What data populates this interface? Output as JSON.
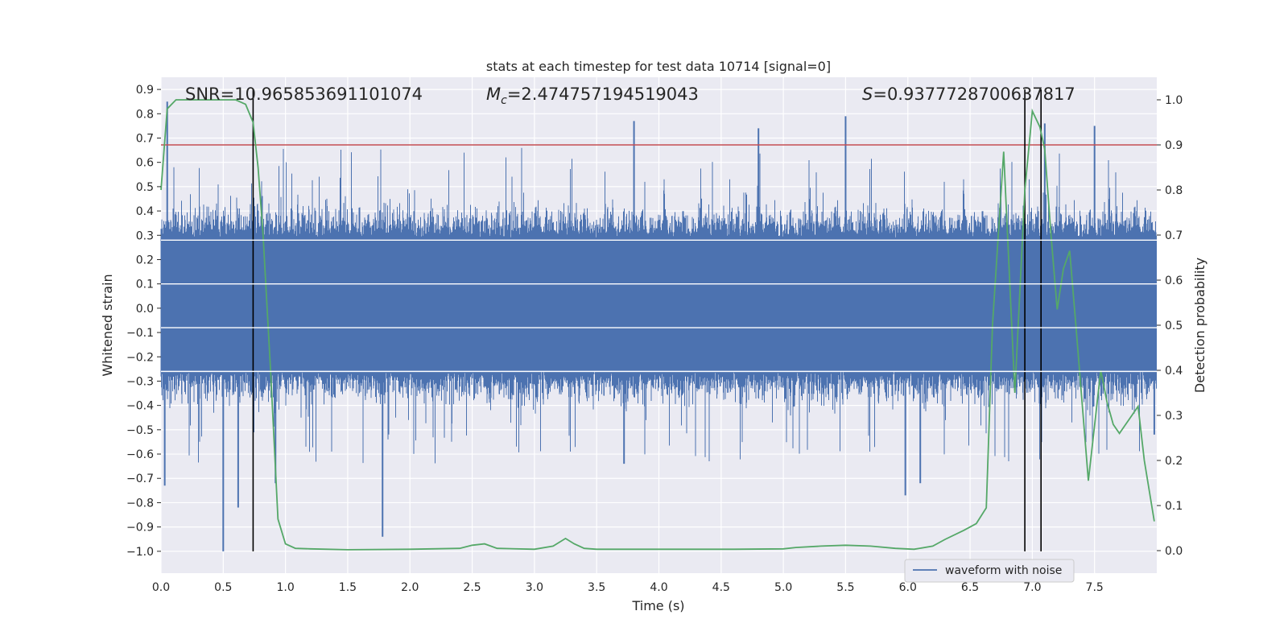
{
  "chart_data": {
    "type": "line",
    "title": "stats at each timestep for test data 10714 [signal=0]",
    "xlabel": "Time (s)",
    "ylabel": "Whitened strain",
    "y2label": "Detection probability",
    "xlim": [
      0.0,
      8.0
    ],
    "ylim": [
      -1.09,
      0.95
    ],
    "y2lim": [
      -0.05,
      1.05
    ],
    "xticks": [
      0.0,
      0.5,
      1.0,
      1.5,
      2.0,
      2.5,
      3.0,
      3.5,
      4.0,
      4.5,
      5.0,
      5.5,
      6.0,
      6.5,
      7.0,
      7.5
    ],
    "xtick_labels": [
      "0.0",
      "0.5",
      "1.0",
      "1.5",
      "2.0",
      "2.5",
      "3.0",
      "3.5",
      "4.0",
      "4.5",
      "5.0",
      "5.5",
      "6.0",
      "6.5",
      "7.0",
      "7.5"
    ],
    "yticks": [
      0.9,
      0.8,
      0.7,
      0.6,
      0.5,
      0.4,
      0.3,
      0.2,
      0.1,
      0.0,
      -0.1,
      -0.2,
      -0.3,
      -0.4,
      -0.5,
      -0.6,
      -0.7,
      -0.8,
      -0.9,
      -1.0
    ],
    "ytick_labels": [
      "0.9",
      "0.8",
      "0.7",
      "0.6",
      "0.5",
      "0.4",
      "0.3",
      "0.2",
      "0.1",
      "0.0",
      "−0.1",
      "−0.2",
      "−0.3",
      "−0.4",
      "−0.5",
      "−0.6",
      "−0.7",
      "−0.8",
      "−0.9",
      "−1.0"
    ],
    "y2ticks": [
      1.0,
      0.9,
      0.8,
      0.7,
      0.6,
      0.5,
      0.4,
      0.3,
      0.2,
      0.1,
      0.0
    ],
    "y2tick_labels": [
      "1.0",
      "0.9",
      "0.8",
      "0.7",
      "0.6",
      "0.5",
      "0.4",
      "0.3",
      "0.2",
      "0.1",
      "0.0"
    ],
    "annotations": {
      "snr": "SNR=10.965853691101074",
      "mc_symbol": "M",
      "mc_sub": "c",
      "mc_value": "=2.474757194519043",
      "s_symbol": "S",
      "s_value": "=0.9377728700637817"
    },
    "threshold_y2": 0.9,
    "vertical_lines_x": [
      0.74,
      6.94,
      7.07
    ],
    "series": [
      {
        "name": "waveform with noise",
        "color": "#4c72b0",
        "axis": "left",
        "description": "dense whitened strain noise, core band about -0.26 to 0.29, spikes to ~0.85 and ~-1.0",
        "spikes": [
          [
            0.05,
            0.85
          ],
          [
            0.03,
            -0.73
          ],
          [
            0.5,
            -1.0
          ],
          [
            0.62,
            -0.82
          ],
          [
            0.92,
            -0.72
          ],
          [
            1.78,
            -0.94
          ],
          [
            3.8,
            0.77
          ],
          [
            3.72,
            -0.64
          ],
          [
            4.8,
            0.74
          ],
          [
            5.5,
            0.79
          ],
          [
            5.98,
            -0.77
          ],
          [
            6.1,
            -0.72
          ],
          [
            7.1,
            0.76
          ],
          [
            7.5,
            0.75
          ],
          [
            7.98,
            -0.52
          ]
        ]
      },
      {
        "name": "detection probability",
        "color": "#55a868",
        "axis": "right",
        "x": [
          0.0,
          0.05,
          0.12,
          0.2,
          0.3,
          0.4,
          0.5,
          0.6,
          0.68,
          0.74,
          0.78,
          0.82,
          0.88,
          0.94,
          1.0,
          1.08,
          1.2,
          1.5,
          2.0,
          2.4,
          2.5,
          2.6,
          2.7,
          3.0,
          3.15,
          3.25,
          3.32,
          3.4,
          3.5,
          3.8,
          4.2,
          4.6,
          5.0,
          5.1,
          5.3,
          5.5,
          5.7,
          5.9,
          6.05,
          6.2,
          6.3,
          6.45,
          6.55,
          6.63,
          6.68,
          6.77,
          6.86,
          6.94,
          7.0,
          7.06,
          7.1,
          7.15,
          7.2,
          7.25,
          7.3,
          7.35,
          7.45,
          7.55,
          7.6,
          7.65,
          7.7,
          7.75,
          7.8,
          7.85,
          7.9,
          7.98
        ],
        "y": [
          0.8,
          0.98,
          1.0,
          1.0,
          1.0,
          1.0,
          1.0,
          1.0,
          0.99,
          0.95,
          0.85,
          0.7,
          0.4,
          0.07,
          0.015,
          0.005,
          0.004,
          0.002,
          0.003,
          0.005,
          0.012,
          0.015,
          0.005,
          0.003,
          0.01,
          0.027,
          0.015,
          0.005,
          0.003,
          0.003,
          0.003,
          0.003,
          0.004,
          0.007,
          0.01,
          0.012,
          0.01,
          0.005,
          0.003,
          0.01,
          0.025,
          0.045,
          0.06,
          0.095,
          0.5,
          0.885,
          0.35,
          0.8,
          0.975,
          0.94,
          0.89,
          0.7,
          0.535,
          0.625,
          0.665,
          0.5,
          0.155,
          0.4,
          0.33,
          0.28,
          0.26,
          0.28,
          0.3,
          0.32,
          0.2,
          0.065
        ]
      }
    ],
    "legend": {
      "placement": "lower-right",
      "label": "waveform with noise"
    }
  }
}
